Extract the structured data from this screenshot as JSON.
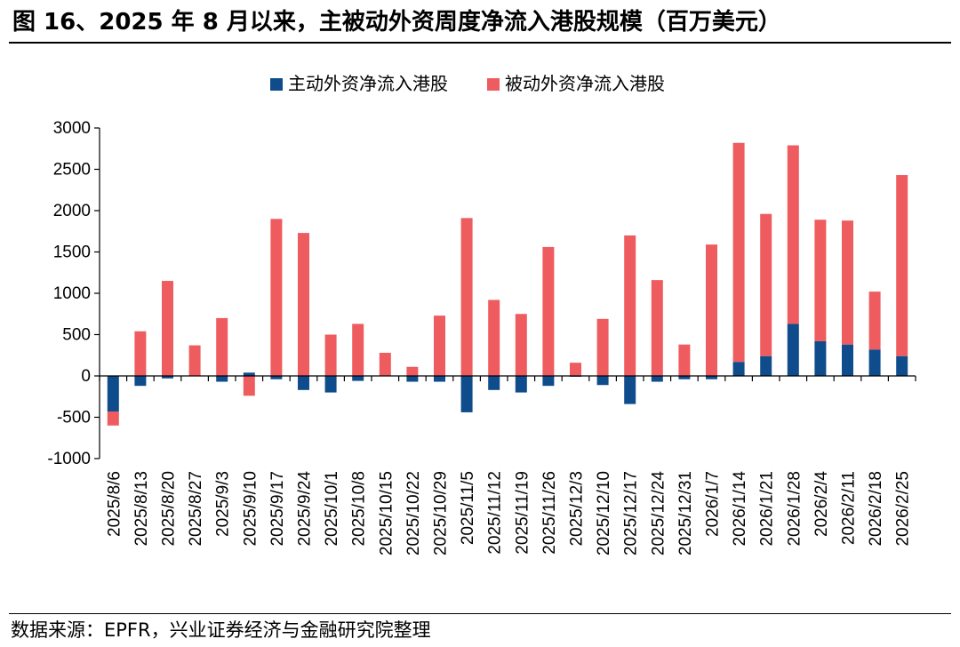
{
  "title": "图 16、2025 年 8 月以来，主被动外资周度净流入港股规模（百万美元）",
  "source": "数据来源：EPFR，兴业证券经济与金融研究院整理",
  "colors": {
    "active": "#0F4C8C",
    "passive": "#EE5C60",
    "axis": "#000000"
  },
  "chart_data": {
    "type": "bar",
    "stacked": true,
    "title": "",
    "xlabel": "",
    "ylabel": "",
    "ylim": [
      -1000,
      3000
    ],
    "yticks": [
      3000,
      2500,
      2000,
      1500,
      1000,
      500,
      0,
      -500,
      -1000
    ],
    "legend_position": "top-center",
    "categories": [
      "2025/8/6",
      "2025/8/13",
      "2025/8/20",
      "2025/8/27",
      "2025/9/3",
      "2025/9/10",
      "2025/9/17",
      "2025/9/24",
      "2025/10/1",
      "2025/10/8",
      "2025/10/15",
      "2025/10/22",
      "2025/10/29",
      "2025/11/5",
      "2025/11/12",
      "2025/11/19",
      "2025/11/26",
      "2025/12/3",
      "2025/12/10",
      "2025/12/17",
      "2025/12/24",
      "2025/12/31",
      "2026/1/7",
      "2026/1/14",
      "2026/1/21",
      "2026/1/28",
      "2026/2/4",
      "2026/2/11",
      "2026/2/18",
      "2026/2/25"
    ],
    "series": [
      {
        "name": "主动外资净流入港股",
        "values": [
          -430,
          -120,
          -30,
          -5,
          -70,
          40,
          -40,
          -170,
          -200,
          -60,
          -5,
          -70,
          -70,
          -440,
          -170,
          -200,
          -120,
          -10,
          -110,
          -340,
          -70,
          -40,
          -40,
          170,
          240,
          630,
          420,
          380,
          320,
          240
        ]
      },
      {
        "name": "被动外资净流入港股",
        "values": [
          -170,
          540,
          1150,
          370,
          700,
          -240,
          1900,
          1730,
          500,
          630,
          280,
          110,
          730,
          1910,
          920,
          750,
          1560,
          160,
          690,
          1700,
          1160,
          380,
          1590,
          2650,
          1720,
          2160,
          1470,
          1500,
          700,
          2190
        ]
      }
    ]
  }
}
